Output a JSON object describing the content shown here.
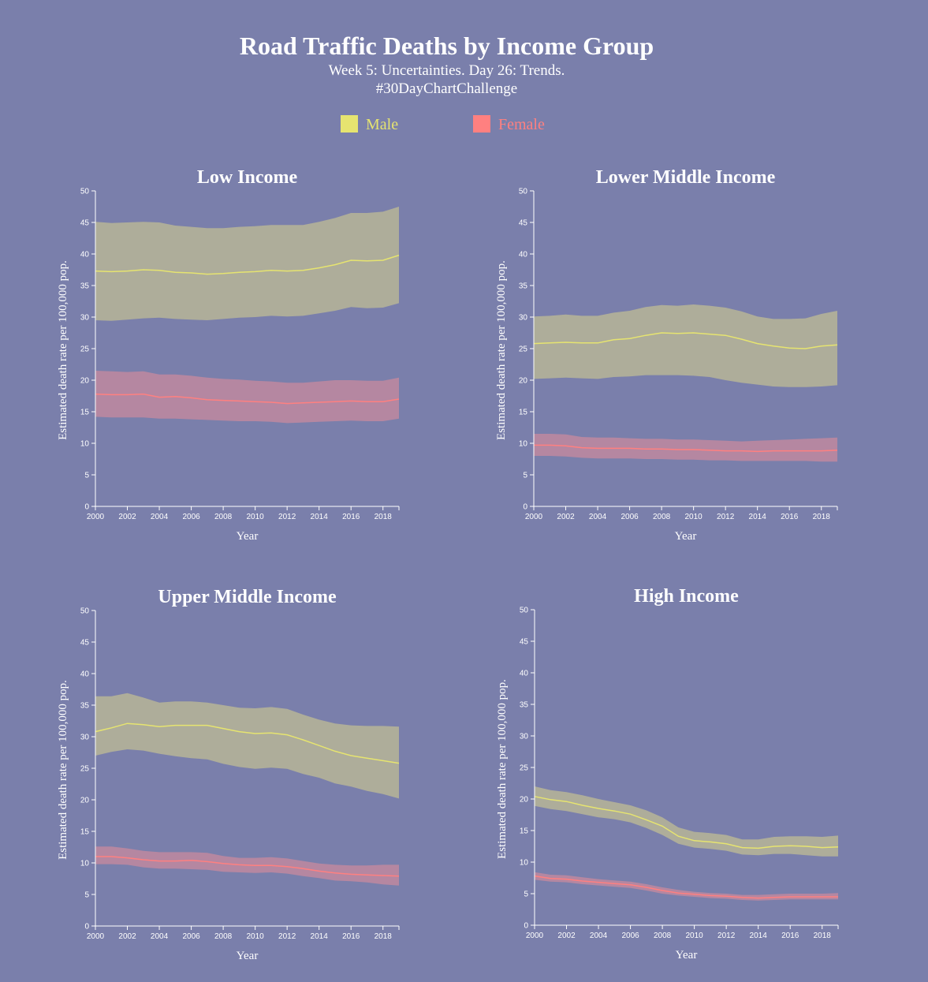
{
  "header": {
    "title": "Road Traffic Deaths by Income Group",
    "subtitle_line1": "Week 5: Uncertainties. Day 26: Trends.",
    "subtitle_line2": "#30DayChartChallenge"
  },
  "legend": {
    "male_label": "Male",
    "female_label": "Female"
  },
  "colors": {
    "background": "#7a7fab",
    "male_line": "#e6e470",
    "male_band": "#b7b596",
    "female_line": "#ff8080",
    "female_band": "#c98a9e",
    "text": "#ffffff"
  },
  "chart_data": [
    {
      "type": "area",
      "title": "Low Income",
      "xlabel": "Year",
      "ylabel": "Estimated death rate per 100,000 pop.",
      "xlim": [
        2000,
        2019
      ],
      "ylim": [
        0,
        50
      ],
      "x_ticks": [
        2000,
        2002,
        2004,
        2006,
        2008,
        2010,
        2012,
        2014,
        2016,
        2018
      ],
      "y_ticks": [
        0,
        5,
        10,
        15,
        20,
        25,
        30,
        35,
        40,
        45,
        50
      ],
      "x": [
        2000,
        2001,
        2002,
        2003,
        2004,
        2005,
        2006,
        2007,
        2008,
        2009,
        2010,
        2011,
        2012,
        2013,
        2014,
        2015,
        2016,
        2017,
        2018,
        2019
      ],
      "series": [
        {
          "name": "Male",
          "values": [
            37.3,
            37.2,
            37.3,
            37.5,
            37.4,
            37.1,
            37.0,
            36.8,
            36.9,
            37.1,
            37.2,
            37.4,
            37.3,
            37.4,
            37.8,
            38.3,
            39.0,
            38.9,
            39.0,
            39.8
          ],
          "lower": [
            29.5,
            29.4,
            29.6,
            29.8,
            29.9,
            29.7,
            29.6,
            29.5,
            29.7,
            29.9,
            30.0,
            30.2,
            30.1,
            30.2,
            30.6,
            31.0,
            31.6,
            31.4,
            31.5,
            32.2
          ],
          "upper": [
            45.1,
            44.9,
            45.0,
            45.1,
            45.0,
            44.5,
            44.3,
            44.1,
            44.1,
            44.3,
            44.4,
            44.6,
            44.6,
            44.6,
            45.1,
            45.7,
            46.5,
            46.5,
            46.7,
            47.5
          ]
        },
        {
          "name": "Female",
          "values": [
            17.8,
            17.7,
            17.7,
            17.8,
            17.3,
            17.4,
            17.2,
            16.9,
            16.8,
            16.7,
            16.6,
            16.5,
            16.3,
            16.4,
            16.5,
            16.6,
            16.7,
            16.6,
            16.6,
            17.0
          ],
          "lower": [
            14.2,
            14.1,
            14.1,
            14.1,
            13.9,
            13.9,
            13.8,
            13.7,
            13.6,
            13.5,
            13.5,
            13.4,
            13.2,
            13.3,
            13.4,
            13.5,
            13.6,
            13.5,
            13.5,
            13.9
          ],
          "upper": [
            21.5,
            21.4,
            21.3,
            21.4,
            20.9,
            20.9,
            20.7,
            20.4,
            20.2,
            20.1,
            19.9,
            19.8,
            19.6,
            19.6,
            19.8,
            20.0,
            20.0,
            19.9,
            19.9,
            20.4
          ]
        }
      ]
    },
    {
      "type": "area",
      "title": "Lower Middle Income",
      "xlabel": "Year",
      "ylabel": "Estimated death rate per 100,000 pop.",
      "xlim": [
        2000,
        2019
      ],
      "ylim": [
        0,
        50
      ],
      "x_ticks": [
        2000,
        2002,
        2004,
        2006,
        2008,
        2010,
        2012,
        2014,
        2016,
        2018
      ],
      "y_ticks": [
        0,
        5,
        10,
        15,
        20,
        25,
        30,
        35,
        40,
        45,
        50
      ],
      "x": [
        2000,
        2001,
        2002,
        2003,
        2004,
        2005,
        2006,
        2007,
        2008,
        2009,
        2010,
        2011,
        2012,
        2013,
        2014,
        2015,
        2016,
        2017,
        2018,
        2019
      ],
      "series": [
        {
          "name": "Male",
          "values": [
            25.8,
            25.9,
            26.0,
            25.9,
            25.9,
            26.4,
            26.6,
            27.1,
            27.5,
            27.4,
            27.5,
            27.3,
            27.1,
            26.5,
            25.8,
            25.4,
            25.1,
            25.0,
            25.4,
            25.6
          ],
          "lower": [
            20.2,
            20.3,
            20.4,
            20.3,
            20.2,
            20.5,
            20.6,
            20.8,
            20.8,
            20.8,
            20.7,
            20.5,
            20.0,
            19.6,
            19.3,
            19.0,
            18.9,
            18.9,
            19.0,
            19.2
          ],
          "upper": [
            30.1,
            30.2,
            30.4,
            30.2,
            30.2,
            30.7,
            31.0,
            31.6,
            31.9,
            31.8,
            32.0,
            31.8,
            31.5,
            30.9,
            30.1,
            29.7,
            29.7,
            29.8,
            30.5,
            31.0
          ]
        },
        {
          "name": "Female",
          "values": [
            9.7,
            9.7,
            9.6,
            9.3,
            9.2,
            9.2,
            9.2,
            9.1,
            9.1,
            9.0,
            9.0,
            8.9,
            8.8,
            8.8,
            8.7,
            8.8,
            8.8,
            8.8,
            8.8,
            8.9
          ],
          "lower": [
            8.0,
            8.0,
            7.9,
            7.7,
            7.6,
            7.6,
            7.6,
            7.5,
            7.5,
            7.4,
            7.4,
            7.3,
            7.3,
            7.2,
            7.2,
            7.2,
            7.2,
            7.2,
            7.1,
            7.1
          ],
          "upper": [
            11.5,
            11.5,
            11.4,
            11.0,
            10.9,
            10.9,
            10.8,
            10.7,
            10.7,
            10.6,
            10.6,
            10.5,
            10.4,
            10.3,
            10.4,
            10.5,
            10.6,
            10.7,
            10.8,
            10.9
          ]
        }
      ]
    },
    {
      "type": "area",
      "title": "Upper Middle Income",
      "xlabel": "Year",
      "ylabel": "Estimated death rate per 100,000 pop.",
      "xlim": [
        2000,
        2019
      ],
      "ylim": [
        0,
        50
      ],
      "x_ticks": [
        2000,
        2002,
        2004,
        2006,
        2008,
        2010,
        2012,
        2014,
        2016,
        2018
      ],
      "y_ticks": [
        0,
        5,
        10,
        15,
        20,
        25,
        30,
        35,
        40,
        45,
        50
      ],
      "x": [
        2000,
        2001,
        2002,
        2003,
        2004,
        2005,
        2006,
        2007,
        2008,
        2009,
        2010,
        2011,
        2012,
        2013,
        2014,
        2015,
        2016,
        2017,
        2018,
        2019
      ],
      "series": [
        {
          "name": "Male",
          "values": [
            30.8,
            31.4,
            32.1,
            31.9,
            31.6,
            31.8,
            31.8,
            31.8,
            31.3,
            30.8,
            30.5,
            30.6,
            30.3,
            29.5,
            28.6,
            27.7,
            27.0,
            26.6,
            26.2,
            25.8
          ],
          "lower": [
            27.0,
            27.6,
            28.0,
            27.8,
            27.3,
            26.9,
            26.6,
            26.4,
            25.7,
            25.2,
            24.9,
            25.1,
            24.9,
            24.1,
            23.5,
            22.6,
            22.1,
            21.4,
            20.9,
            20.2
          ],
          "upper": [
            36.4,
            36.4,
            36.9,
            36.2,
            35.4,
            35.6,
            35.6,
            35.4,
            35.0,
            34.6,
            34.5,
            34.7,
            34.4,
            33.5,
            32.7,
            32.1,
            31.8,
            31.7,
            31.7,
            31.6
          ]
        },
        {
          "name": "Female",
          "values": [
            11.0,
            11.0,
            10.8,
            10.5,
            10.3,
            10.3,
            10.4,
            10.2,
            9.9,
            9.7,
            9.6,
            9.6,
            9.4,
            9.1,
            8.7,
            8.4,
            8.2,
            8.1,
            8.0,
            7.9
          ],
          "lower": [
            9.8,
            9.8,
            9.7,
            9.3,
            9.1,
            9.1,
            9.0,
            8.9,
            8.6,
            8.5,
            8.4,
            8.5,
            8.3,
            7.9,
            7.6,
            7.2,
            7.1,
            6.9,
            6.6,
            6.4
          ],
          "upper": [
            12.6,
            12.6,
            12.3,
            11.9,
            11.7,
            11.7,
            11.7,
            11.6,
            11.1,
            10.8,
            10.8,
            10.9,
            10.7,
            10.3,
            9.9,
            9.7,
            9.6,
            9.6,
            9.7,
            9.7
          ]
        }
      ]
    },
    {
      "type": "area",
      "title": "High Income",
      "xlabel": "Year",
      "ylabel": "Estimated death rate per 100,000 pop.",
      "xlim": [
        2000,
        2019
      ],
      "ylim": [
        0,
        50
      ],
      "x_ticks": [
        2000,
        2002,
        2004,
        2006,
        2008,
        2010,
        2012,
        2014,
        2016,
        2018
      ],
      "y_ticks": [
        0,
        5,
        10,
        15,
        20,
        25,
        30,
        35,
        40,
        45,
        50
      ],
      "x": [
        2000,
        2001,
        2002,
        2003,
        2004,
        2005,
        2006,
        2007,
        2008,
        2009,
        2010,
        2011,
        2012,
        2013,
        2014,
        2015,
        2016,
        2017,
        2018,
        2019
      ],
      "series": [
        {
          "name": "Male",
          "values": [
            20.4,
            19.9,
            19.6,
            19.0,
            18.5,
            18.1,
            17.6,
            16.7,
            15.7,
            14.1,
            13.4,
            13.2,
            12.9,
            12.3,
            12.2,
            12.5,
            12.6,
            12.5,
            12.3,
            12.4
          ],
          "lower": [
            18.9,
            18.4,
            18.1,
            17.6,
            17.1,
            16.8,
            16.3,
            15.4,
            14.3,
            12.9,
            12.3,
            12.1,
            11.8,
            11.2,
            11.1,
            11.3,
            11.3,
            11.1,
            10.9,
            10.9
          ],
          "upper": [
            22.0,
            21.4,
            21.1,
            20.6,
            20.0,
            19.5,
            19.0,
            18.2,
            17.1,
            15.5,
            14.8,
            14.6,
            14.3,
            13.6,
            13.6,
            14.0,
            14.1,
            14.1,
            14.0,
            14.2
          ]
        },
        {
          "name": "Female",
          "values": [
            7.8,
            7.4,
            7.3,
            7.0,
            6.8,
            6.6,
            6.4,
            6.0,
            5.5,
            5.1,
            4.9,
            4.7,
            4.6,
            4.4,
            4.3,
            4.4,
            4.5,
            4.5,
            4.5,
            4.5
          ],
          "lower": [
            7.2,
            6.9,
            6.8,
            6.5,
            6.3,
            6.1,
            5.9,
            5.5,
            5.0,
            4.7,
            4.5,
            4.3,
            4.2,
            4.0,
            3.9,
            4.0,
            4.1,
            4.1,
            4.1,
            4.1
          ],
          "upper": [
            8.4,
            8.0,
            7.9,
            7.6,
            7.3,
            7.1,
            6.9,
            6.5,
            6.0,
            5.6,
            5.3,
            5.1,
            5.0,
            4.8,
            4.8,
            4.9,
            5.0,
            5.0,
            5.0,
            5.1
          ]
        }
      ]
    }
  ]
}
